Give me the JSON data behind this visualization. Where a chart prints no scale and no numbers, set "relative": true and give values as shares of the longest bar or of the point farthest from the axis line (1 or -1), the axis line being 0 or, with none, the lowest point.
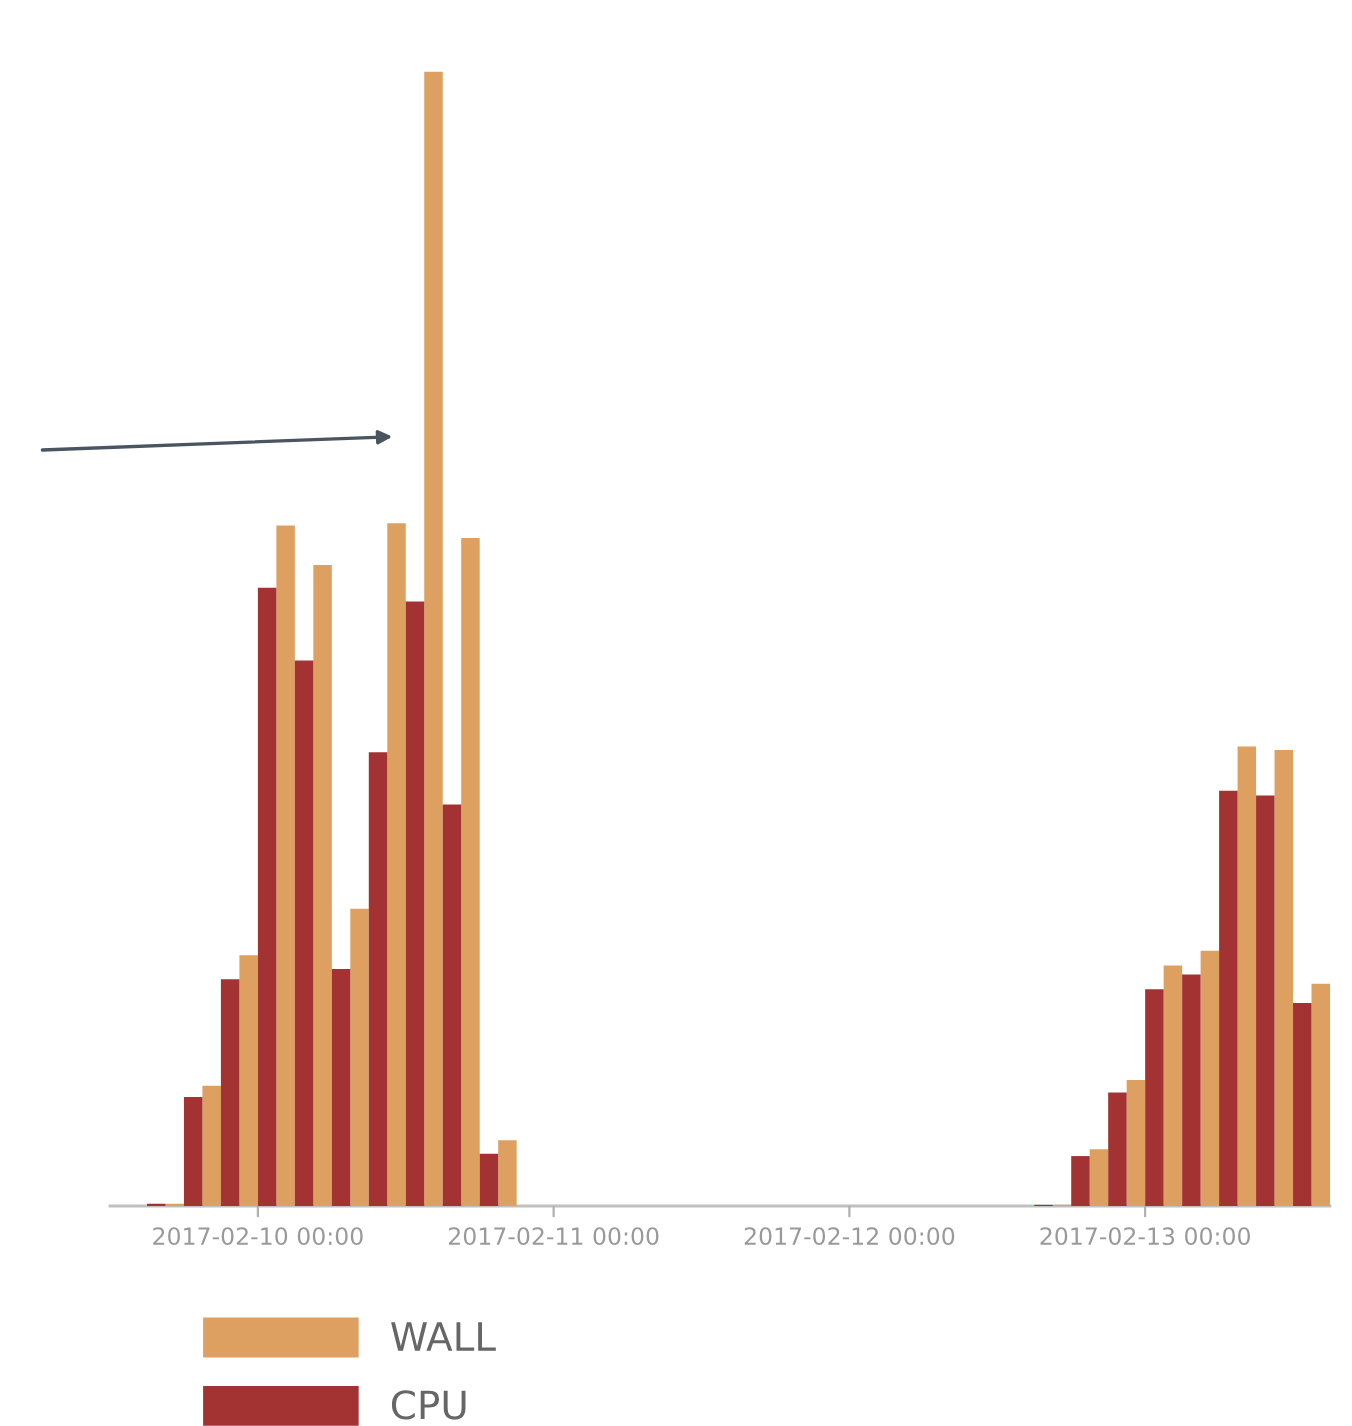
{
  "chart_data": {
    "type": "bar",
    "relative": true,
    "series": [
      {
        "name": "WALL",
        "color": "#dda060",
        "x": [
          "2017-02-09T17:15",
          "2017-02-09T20:15",
          "2017-02-09T23:15",
          "2017-02-10T02:15",
          "2017-02-10T05:15",
          "2017-02-10T08:15",
          "2017-02-10T11:15",
          "2017-02-10T14:15",
          "2017-02-10T17:15",
          "2017-02-10T20:15",
          "2017-02-12T17:15",
          "2017-02-12T20:15",
          "2017-02-12T23:15",
          "2017-02-13T02:15",
          "2017-02-13T05:15",
          "2017-02-13T08:15",
          "2017-02-13T11:15",
          "2017-02-13T14:15"
        ],
        "values": [
          0.002,
          0.106,
          0.221,
          0.6,
          0.565,
          0.262,
          0.602,
          1,
          0.589,
          0.058,
          0.001,
          0.05,
          0.111,
          0.212,
          0.225,
          0.405,
          0.402,
          0.196
        ]
      },
      {
        "name": "CPU",
        "color": "#a33333",
        "x": [
          "2017-02-09T15:45",
          "2017-02-09T18:45",
          "2017-02-09T21:45",
          "2017-02-10T00:45",
          "2017-02-10T03:45",
          "2017-02-10T06:45",
          "2017-02-10T09:45",
          "2017-02-10T12:45",
          "2017-02-10T15:45",
          "2017-02-10T18:45",
          "2017-02-12T15:45",
          "2017-02-12T18:45",
          "2017-02-12T21:45",
          "2017-02-13T00:45",
          "2017-02-13T03:45",
          "2017-02-13T06:45",
          "2017-02-13T09:45",
          "2017-02-13T12:45"
        ],
        "values": [
          0.002,
          0.096,
          0.2,
          0.545,
          0.481,
          0.209,
          0.4,
          0.533,
          0.354,
          0.046,
          0.001,
          0.044,
          0.1,
          0.191,
          0.204,
          0.366,
          0.362,
          0.179
        ]
      }
    ],
    "xlim": [
      "2017-02-09T12:00",
      "2017-02-13T15:00"
    ],
    "xticks": [
      {
        "value": "2017-02-10T00:00",
        "label": "2017-02-10 00:00"
      },
      {
        "value": "2017-02-11T00:00",
        "label": "2017-02-11 00:00"
      },
      {
        "value": "2017-02-12T00:00",
        "label": "2017-02-12 00:00"
      },
      {
        "value": "2017-02-13T00:00",
        "label": "2017-02-13 00:00"
      }
    ],
    "legend": "bottom",
    "grid": false
  }
}
